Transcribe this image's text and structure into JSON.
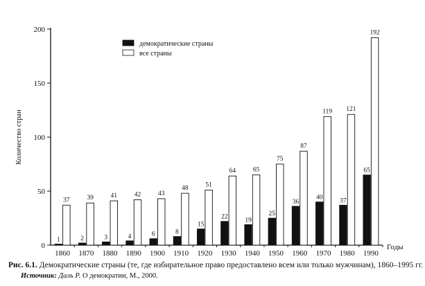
{
  "chart_data": {
    "type": "bar",
    "categories": [
      "1860",
      "1870",
      "1880",
      "1890",
      "1900",
      "1910",
      "1920",
      "1930",
      "1940",
      "1950",
      "1960",
      "1970",
      "1980",
      "1990"
    ],
    "series": [
      {
        "name": "демократические страны",
        "color": "#111111",
        "values": [
          1,
          2,
          3,
          4,
          6,
          8,
          15,
          22,
          19,
          25,
          36,
          40,
          37,
          65
        ]
      },
      {
        "name": "все страны",
        "color": "#ffffff",
        "values": [
          37,
          39,
          41,
          42,
          43,
          48,
          51,
          64,
          65,
          75,
          87,
          119,
          121,
          192
        ]
      }
    ],
    "ylabel": "Количество стран",
    "xlabel": "Годы",
    "ylim": [
      0,
      200
    ],
    "yticks": [
      "0",
      "50",
      "100",
      "150",
      "200"
    ],
    "legend_position": "top-center",
    "grid": false
  },
  "caption": {
    "label": "Рис. 6.1.",
    "text": " Демократические страны (те, где избирательное право предоставлено всем или только мужчинам), 1860–1995 гг."
  },
  "source": {
    "label": "Источник:",
    "author": " Даль Р.",
    "text": " О демократии, М., 2000."
  }
}
